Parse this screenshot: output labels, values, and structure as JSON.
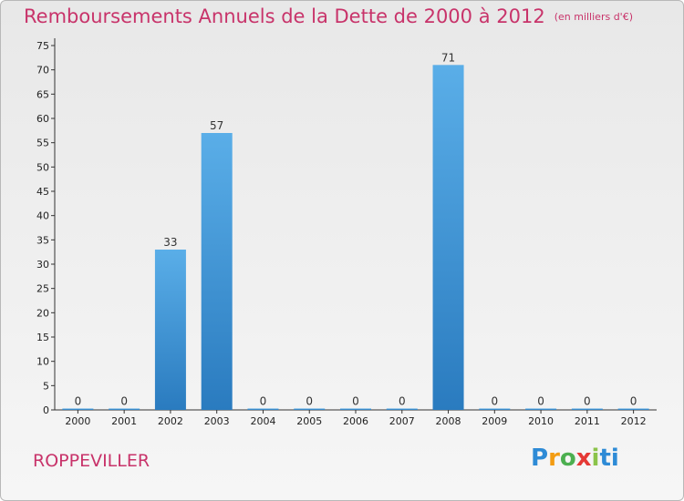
{
  "chart_data": {
    "type": "bar",
    "title": "Remboursements Annuels de la Dette de 2000 à 2012",
    "unit_note": "(en milliers d'€)",
    "categories": [
      "2000",
      "2001",
      "2002",
      "2003",
      "2004",
      "2005",
      "2006",
      "2007",
      "2008",
      "2009",
      "2010",
      "2011",
      "2012"
    ],
    "values": [
      0,
      0,
      33,
      57,
      0,
      0,
      0,
      0,
      71,
      0,
      0,
      0,
      0
    ],
    "ylim": [
      0,
      75
    ],
    "yticks": [
      0,
      5,
      10,
      15,
      20,
      25,
      30,
      35,
      40,
      45,
      50,
      55,
      60,
      65,
      70,
      75
    ],
    "grid": false,
    "bar_color_top": "#5aaee8",
    "bar_color_bottom": "#2a7bbf"
  },
  "footer": {
    "commune": "ROPPEVILLER",
    "logo_letters": [
      "P",
      "r",
      "o",
      "x",
      "i",
      "ti"
    ]
  }
}
